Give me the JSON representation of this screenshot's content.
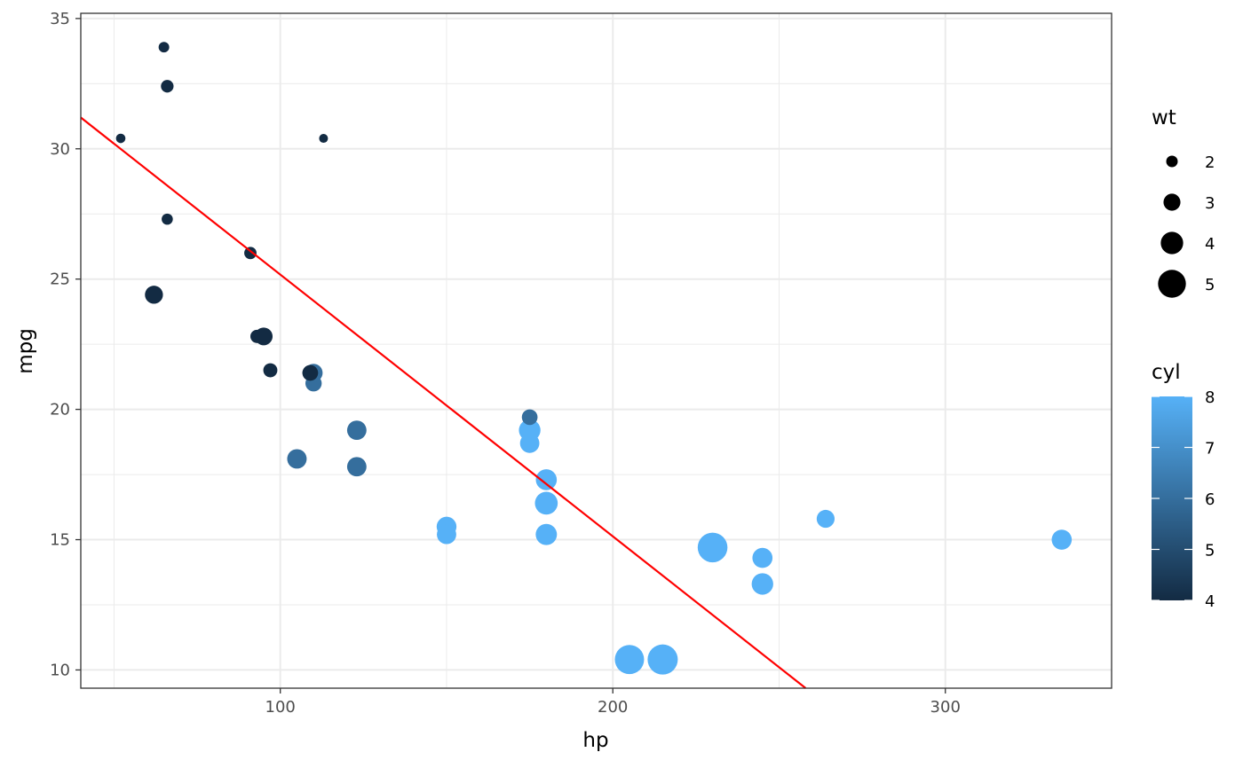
{
  "chart_data": {
    "type": "scatter",
    "xlabel": "hp",
    "ylabel": "mpg",
    "xlim": [
      40,
      350
    ],
    "ylim": [
      9.3,
      35.2
    ],
    "x_ticks": [
      100,
      200,
      300
    ],
    "y_ticks": [
      10,
      15,
      20,
      25,
      30,
      35
    ],
    "grid": true,
    "theme": "bw",
    "points": [
      {
        "x": 110,
        "y": 21.0,
        "wt": 2.62,
        "cyl": 6
      },
      {
        "x": 110,
        "y": 21.0,
        "wt": 2.875,
        "cyl": 6
      },
      {
        "x": 93,
        "y": 22.8,
        "wt": 2.32,
        "cyl": 4
      },
      {
        "x": 110,
        "y": 21.4,
        "wt": 3.215,
        "cyl": 6
      },
      {
        "x": 175,
        "y": 18.7,
        "wt": 3.44,
        "cyl": 8
      },
      {
        "x": 105,
        "y": 18.1,
        "wt": 3.46,
        "cyl": 6
      },
      {
        "x": 245,
        "y": 14.3,
        "wt": 3.57,
        "cyl": 8
      },
      {
        "x": 62,
        "y": 24.4,
        "wt": 3.19,
        "cyl": 4
      },
      {
        "x": 95,
        "y": 22.8,
        "wt": 3.15,
        "cyl": 4
      },
      {
        "x": 123,
        "y": 19.2,
        "wt": 3.44,
        "cyl": 6
      },
      {
        "x": 123,
        "y": 17.8,
        "wt": 3.44,
        "cyl": 6
      },
      {
        "x": 180,
        "y": 16.4,
        "wt": 4.07,
        "cyl": 8
      },
      {
        "x": 180,
        "y": 17.3,
        "wt": 3.73,
        "cyl": 8
      },
      {
        "x": 180,
        "y": 15.2,
        "wt": 3.78,
        "cyl": 8
      },
      {
        "x": 205,
        "y": 10.4,
        "wt": 5.25,
        "cyl": 8
      },
      {
        "x": 215,
        "y": 10.4,
        "wt": 5.424,
        "cyl": 8
      },
      {
        "x": 230,
        "y": 14.7,
        "wt": 5.345,
        "cyl": 8
      },
      {
        "x": 66,
        "y": 32.4,
        "wt": 2.2,
        "cyl": 4
      },
      {
        "x": 52,
        "y": 30.4,
        "wt": 1.615,
        "cyl": 4
      },
      {
        "x": 65,
        "y": 33.9,
        "wt": 1.835,
        "cyl": 4
      },
      {
        "x": 97,
        "y": 21.5,
        "wt": 2.465,
        "cyl": 4
      },
      {
        "x": 150,
        "y": 15.5,
        "wt": 3.52,
        "cyl": 8
      },
      {
        "x": 150,
        "y": 15.2,
        "wt": 3.435,
        "cyl": 8
      },
      {
        "x": 245,
        "y": 13.3,
        "wt": 3.84,
        "cyl": 8
      },
      {
        "x": 175,
        "y": 19.2,
        "wt": 3.845,
        "cyl": 8
      },
      {
        "x": 66,
        "y": 27.3,
        "wt": 1.935,
        "cyl": 4
      },
      {
        "x": 91,
        "y": 26.0,
        "wt": 2.14,
        "cyl": 4
      },
      {
        "x": 113,
        "y": 30.4,
        "wt": 1.513,
        "cyl": 4
      },
      {
        "x": 264,
        "y": 15.8,
        "wt": 3.17,
        "cyl": 8
      },
      {
        "x": 175,
        "y": 19.7,
        "wt": 2.77,
        "cyl": 6
      },
      {
        "x": 335,
        "y": 15.0,
        "wt": 3.57,
        "cyl": 8
      },
      {
        "x": 109,
        "y": 21.4,
        "wt": 2.78,
        "cyl": 4
      }
    ],
    "fit_line": {
      "color": "#ff0000",
      "x": [
        40,
        258
      ],
      "y": [
        31.2,
        9.3
      ]
    },
    "size_legend": {
      "title": "wt",
      "values": [
        2,
        3,
        4,
        5
      ]
    },
    "color_legend": {
      "title": "cyl",
      "ticks": [
        4,
        5,
        6,
        7,
        8
      ],
      "low_color": "#132b43",
      "high_color": "#56b1f7"
    },
    "legend_position": "right"
  }
}
